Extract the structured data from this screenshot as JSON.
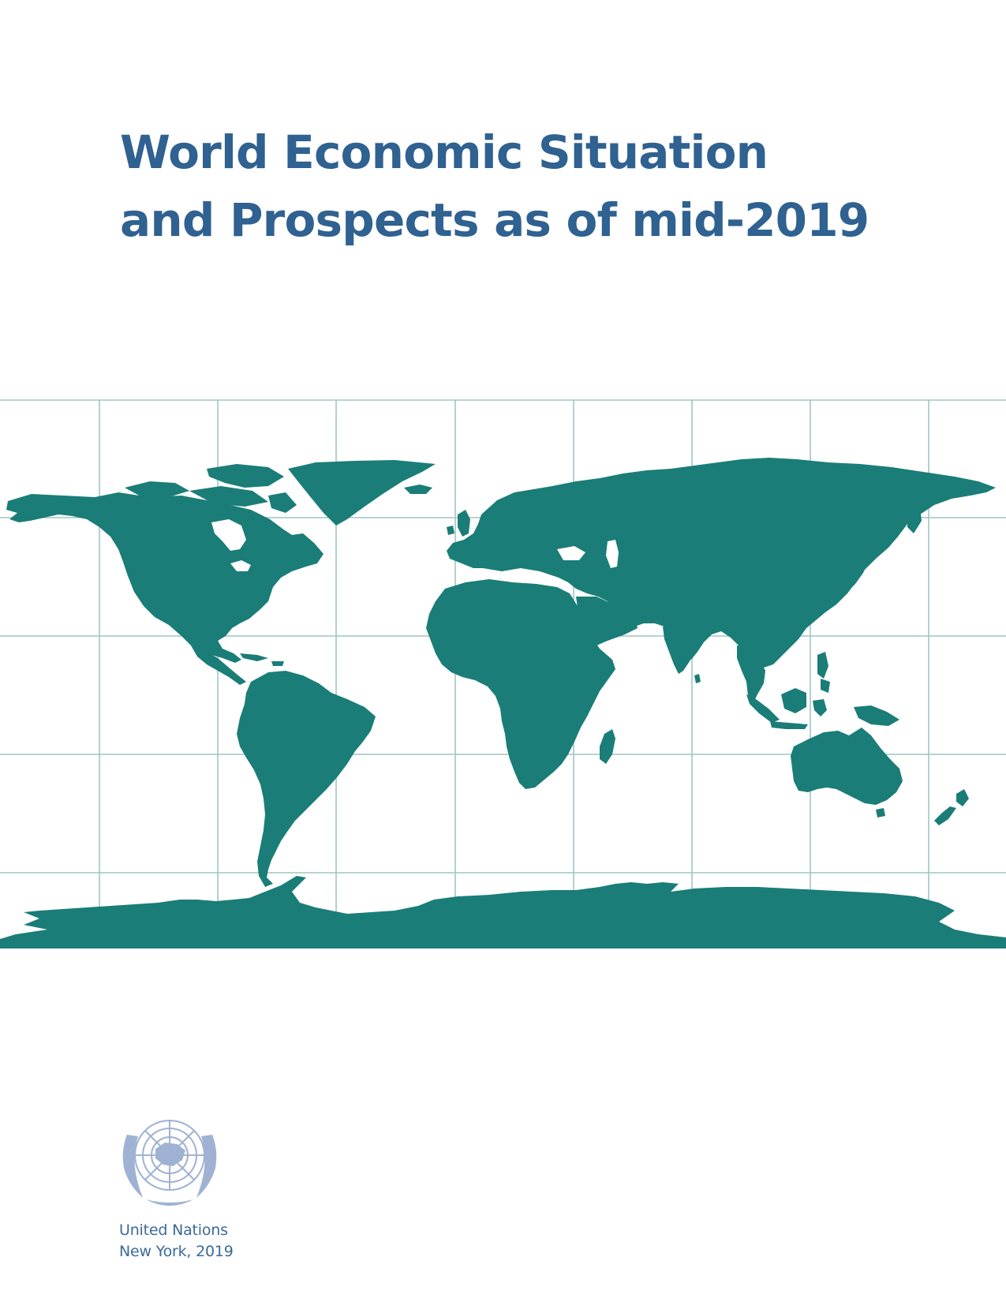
{
  "cover": {
    "title_line1": "World Economic Situation",
    "title_line2": "and Prospects as of mid-2019",
    "publisher": "United Nations",
    "place_year": "New York, 2019"
  },
  "colors": {
    "title": "#2f6191",
    "land": "#1a7d77",
    "grid": "#9ec6c3",
    "emblem": "#9fb2d3",
    "publisher_text": "#3b6a9a"
  },
  "map": {
    "graphic": "world-map-with-graticule",
    "emblem_icon": "un-emblem-icon"
  }
}
